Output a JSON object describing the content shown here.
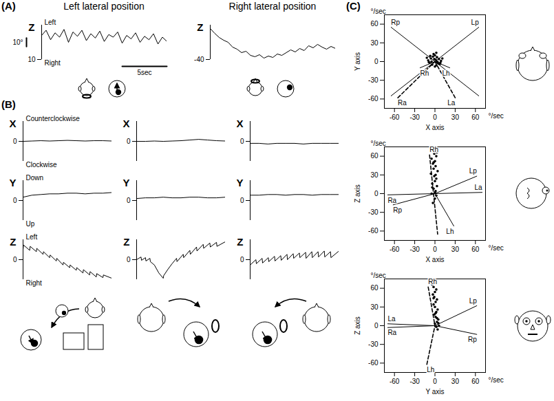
{
  "chart_data": [
    {
      "panel": "(A)",
      "type": "line",
      "title": "Left lateral position",
      "ylabel": "Z",
      "annotations": [
        "Left",
        "Right"
      ],
      "x": [
        0,
        0.5,
        1,
        1.5,
        2,
        2.5,
        3,
        3.5,
        4,
        4.5,
        5,
        5.5,
        6,
        6.5,
        7,
        7.5,
        8,
        8.5,
        9,
        9.5,
        10,
        10.5,
        11,
        11.5,
        12,
        12.5,
        13,
        13.5,
        14
      ],
      "values": [
        38,
        44,
        33,
        41,
        36,
        45,
        30,
        42,
        37,
        44,
        32,
        40,
        35,
        43,
        31,
        39,
        36,
        42,
        29,
        38,
        34,
        41,
        30,
        37,
        33,
        40,
        28,
        36,
        31
      ],
      "xlim": [
        0,
        14
      ],
      "ylim": [
        10,
        50
      ],
      "yticks": [
        10
      ],
      "tick_labels": "y",
      "scale_bar": {
        "y": 10,
        "y_label": "10°",
        "x": 5,
        "x_label": "5sec"
      }
    },
    {
      "type": "line",
      "title": "Right lateral position",
      "ylabel": "Z",
      "x": [
        0,
        0.5,
        1,
        1.5,
        2,
        2.5,
        3,
        3.5,
        4,
        4.5,
        5,
        5.5,
        6,
        6.5,
        7,
        7.5,
        8,
        8.5,
        9,
        9.5,
        10,
        10.5,
        11,
        11.5,
        12,
        12.5,
        13,
        13.5,
        14
      ],
      "values": [
        5,
        -2,
        -8,
        -12,
        -15,
        -22,
        -25,
        -30,
        -28,
        -34,
        -36,
        -33,
        -38,
        -35,
        -37,
        -32,
        -34,
        -30,
        -26,
        -29,
        -24,
        -27,
        -20,
        -23,
        -18,
        -22,
        -25,
        -21,
        -24
      ],
      "xlim": [
        0,
        14
      ],
      "ylim": [
        -40,
        10
      ],
      "yticks": [
        -40
      ],
      "tick_labels": "y"
    },
    {
      "panel": "(B)",
      "type": "line",
      "ylabel": "X",
      "annotations": [
        "Counterclockwise",
        "Clockwise"
      ],
      "x": [
        0,
        2,
        4,
        6,
        8,
        10,
        12,
        14,
        16,
        18,
        20
      ],
      "values": [
        0,
        0.5,
        1,
        0.5,
        1,
        1.5,
        1,
        0.5,
        1,
        1,
        0.5
      ],
      "xlim": [
        0,
        20
      ],
      "ylim": [
        -30,
        30
      ],
      "yticks": [
        0
      ],
      "tick_labels": "y"
    },
    {
      "type": "line",
      "ylabel": "Y",
      "annotations": [
        "Down",
        "Up"
      ],
      "x": [
        0,
        2,
        4,
        6,
        8,
        10,
        12,
        14,
        16,
        18,
        20
      ],
      "values": [
        5,
        8,
        9,
        10,
        10,
        11,
        11,
        10,
        11,
        11,
        12
      ],
      "xlim": [
        0,
        20
      ],
      "ylim": [
        -30,
        30
      ],
      "yticks": [
        0
      ],
      "tick_labels": "y"
    },
    {
      "type": "line",
      "ylabel": "Z",
      "annotations": [
        "Left",
        "Right"
      ],
      "x": [
        0,
        0.1,
        1.5,
        1.6,
        3,
        3.1,
        4.5,
        4.6,
        6,
        6.1,
        7.5,
        7.6,
        9,
        9.1,
        10.5,
        10.6,
        12,
        12.1,
        13.5,
        13.6,
        15,
        15.1,
        16.5,
        16.6,
        18,
        18.1,
        20
      ],
      "values": [
        15,
        22,
        14,
        20,
        12,
        17,
        8,
        12,
        3,
        7,
        -2,
        2,
        -8,
        -4,
        -12,
        -8,
        -16,
        -12,
        -20,
        -15,
        -23,
        -18,
        -26,
        -21,
        -27,
        -23,
        -28
      ],
      "xlim": [
        0,
        20
      ],
      "ylim": [
        -30,
        30
      ],
      "yticks": [
        0
      ],
      "tick_labels": "y"
    },
    {
      "type": "line",
      "ylabel": "X",
      "x": [
        0,
        2,
        4,
        6,
        8,
        10,
        12,
        14,
        16,
        18,
        20
      ],
      "values": [
        0,
        0,
        0.5,
        0,
        0.5,
        1,
        2,
        3,
        2,
        1,
        0.5
      ],
      "xlim": [
        0,
        20
      ],
      "ylim": [
        -30,
        30
      ],
      "yticks": [
        0
      ],
      "tick_labels": "y"
    },
    {
      "type": "line",
      "ylabel": "Y",
      "x": [
        0,
        2,
        4,
        6,
        8,
        10,
        12,
        14,
        16,
        18,
        20
      ],
      "values": [
        3,
        4,
        4,
        5,
        4,
        4,
        5,
        5,
        4,
        4,
        5
      ],
      "xlim": [
        0,
        20
      ],
      "ylim": [
        -30,
        30
      ],
      "yticks": [
        0
      ],
      "tick_labels": "y"
    },
    {
      "type": "line",
      "ylabel": "Z",
      "x": [
        0,
        1,
        1.1,
        2,
        2.1,
        3,
        3.1,
        4,
        5,
        6,
        6.1,
        7,
        8,
        9,
        9.1,
        10.5,
        10.6,
        12,
        12.1,
        13.5,
        13.6,
        15,
        15.1,
        16.5,
        16.6,
        18,
        18.1,
        20
      ],
      "values": [
        0,
        4,
        -1,
        3,
        -2,
        2,
        -3,
        -8,
        -20,
        -28,
        -24,
        -15,
        -6,
        2,
        -3,
        8,
        3,
        14,
        8,
        19,
        13,
        23,
        17,
        25,
        19,
        26,
        20,
        27
      ],
      "xlim": [
        0,
        20
      ],
      "ylim": [
        -30,
        30
      ],
      "yticks": [
        0
      ],
      "tick_labels": "y"
    },
    {
      "type": "line",
      "ylabel": "X",
      "x": [
        0,
        2,
        4,
        6,
        8,
        10,
        12,
        14,
        16,
        18,
        20
      ],
      "values": [
        -3,
        -3,
        -4,
        -3,
        -3,
        -3,
        -4,
        -3,
        -3,
        -3,
        -3
      ],
      "xlim": [
        0,
        20
      ],
      "ylim": [
        -30,
        30
      ],
      "yticks": [
        0
      ],
      "tick_labels": "y"
    },
    {
      "type": "line",
      "ylabel": "Y",
      "x": [
        0,
        2,
        4,
        6,
        8,
        10,
        12,
        14,
        16,
        18,
        20
      ],
      "values": [
        8,
        8,
        9,
        9,
        8,
        9,
        9,
        8,
        9,
        9,
        9
      ],
      "xlim": [
        0,
        20
      ],
      "ylim": [
        -30,
        30
      ],
      "yticks": [
        0
      ],
      "tick_labels": "y"
    },
    {
      "type": "line",
      "ylabel": "Z",
      "x": [
        0,
        1.3,
        1.4,
        2.7,
        2.8,
        4.1,
        4.2,
        5.5,
        5.6,
        6.9,
        7,
        8.3,
        8.4,
        9.7,
        9.8,
        11.1,
        11.2,
        12.5,
        12.6,
        13.9,
        14,
        15.3,
        15.4,
        16.7,
        16.8,
        18.1,
        18.2,
        20
      ],
      "values": [
        -8,
        0,
        -6,
        2,
        -5,
        3,
        -3,
        5,
        -2,
        6,
        -1,
        8,
        0,
        9,
        2,
        10,
        3,
        11,
        2,
        12,
        3,
        12,
        4,
        13,
        4,
        12,
        3,
        13
      ],
      "xlim": [
        0,
        20
      ],
      "ylim": [
        -30,
        30
      ],
      "yticks": [
        0
      ],
      "tick_labels": "y"
    },
    {
      "panel": "(C)",
      "type": "scatter",
      "xlabel": "X axis",
      "ylabel": "Y axis",
      "unit": "°/sec",
      "xlim": [
        -75,
        75
      ],
      "ylim": [
        -75,
        75
      ],
      "xticks": [
        -60,
        -30,
        0,
        30,
        60
      ],
      "yticks": [
        -60,
        -30,
        0,
        30,
        60
      ],
      "series": [
        {
          "type": "scatter",
          "x": [
            -10,
            -6,
            -3,
            0,
            3,
            6,
            9,
            -8,
            -4,
            2,
            5,
            -12,
            11,
            -2,
            1,
            4,
            -5,
            7,
            -7,
            0,
            3,
            -1,
            8,
            -9,
            2
          ],
          "y": [
            2,
            5,
            8,
            10,
            7,
            4,
            1,
            -2,
            -5,
            -6,
            -3,
            6,
            5,
            12,
            3,
            -1,
            0,
            -4,
            9,
            -8,
            0,
            4,
            -2,
            -1,
            14
          ]
        },
        {
          "name": "Rp",
          "type": "line",
          "line_style": "solid",
          "x": [
            -65,
            65
          ],
          "y": [
            55,
            -55
          ]
        },
        {
          "name": "Lp",
          "type": "line",
          "line_style": "solid",
          "x": [
            65,
            -65
          ],
          "y": [
            55,
            -55
          ]
        },
        {
          "name": "Ra",
          "type": "line",
          "line_style": "dashed",
          "x": [
            -55,
            0
          ],
          "y": [
            -58,
            0
          ]
        },
        {
          "name": "La",
          "type": "line",
          "line_style": "dashed",
          "x": [
            30,
            0
          ],
          "y": [
            -58,
            0
          ]
        },
        {
          "name": "Rh",
          "type": "line",
          "line_style": "solid",
          "x": [
            -22,
            0
          ],
          "y": [
            -10,
            0
          ]
        },
        {
          "name": "Lh",
          "type": "line",
          "line_style": "solid",
          "x": [
            22,
            0
          ],
          "y": [
            -10,
            0
          ]
        }
      ]
    },
    {
      "type": "scatter",
      "xlabel": "X axis",
      "ylabel": "Z axis",
      "unit": "°/sec",
      "xlim": [
        -75,
        75
      ],
      "ylim": [
        -75,
        75
      ],
      "xticks": [
        -60,
        -30,
        0,
        30,
        60
      ],
      "yticks": [
        -60,
        -30,
        0,
        30,
        60
      ],
      "series": [
        {
          "type": "scatter",
          "x": [
            -3,
            0,
            2,
            -5,
            1,
            -2,
            3,
            -4,
            0,
            2,
            -1,
            -6,
            4,
            -2,
            1,
            -3,
            0,
            -5,
            2,
            -1,
            3,
            -4,
            1,
            -2,
            0
          ],
          "y": [
            -15,
            -8,
            -3,
            0,
            4,
            8,
            12,
            16,
            20,
            24,
            28,
            32,
            36,
            40,
            44,
            48,
            52,
            56,
            60,
            64,
            66,
            10,
            30,
            50,
            2
          ]
        },
        {
          "name": "Rh",
          "type": "line",
          "line_style": "dashed",
          "x": [
            -8,
            4
          ],
          "y": [
            62,
            -65
          ]
        },
        {
          "name": "Lh",
          "type": "line",
          "line_style": "solid",
          "x": [
            28,
            0
          ],
          "y": [
            -52,
            0
          ]
        },
        {
          "name": "Lp",
          "type": "line",
          "line_style": "solid",
          "x": [
            62,
            0
          ],
          "y": [
            28,
            0
          ]
        },
        {
          "name": "La",
          "type": "line",
          "line_style": "solid",
          "x": [
            70,
            0
          ],
          "y": [
            2,
            0
          ]
        },
        {
          "name": "Ra",
          "type": "line",
          "line_style": "solid",
          "x": [
            -70,
            0
          ],
          "y": [
            -2,
            0
          ]
        },
        {
          "name": "Rp",
          "type": "line",
          "line_style": "solid",
          "x": [
            -62,
            0
          ],
          "y": [
            -18,
            0
          ]
        }
      ]
    },
    {
      "type": "scatter",
      "xlabel": "Y axis",
      "ylabel": "Z axis",
      "unit": "°/sec",
      "xlim": [
        -75,
        75
      ],
      "ylim": [
        -75,
        75
      ],
      "xticks": [
        -60,
        -30,
        0,
        30,
        60
      ],
      "yticks": [
        -60,
        -30,
        0,
        30,
        60
      ],
      "series": [
        {
          "type": "scatter",
          "x": [
            4,
            2,
            6,
            0,
            3,
            5,
            1,
            -1,
            2,
            4,
            0,
            -2,
            1,
            3,
            -1,
            -3,
            0,
            2,
            -2,
            -4,
            -1,
            5,
            1,
            -2,
            3
          ],
          "y": [
            -6,
            -2,
            0,
            3,
            6,
            10,
            14,
            18,
            22,
            26,
            30,
            34,
            38,
            42,
            46,
            50,
            54,
            58,
            62,
            66,
            68,
            4,
            20,
            44,
            12
          ]
        },
        {
          "name": "Rh",
          "type": "line",
          "line_style": "dashed",
          "x": [
            -10,
            0
          ],
          "y": [
            62,
            0
          ]
        },
        {
          "name": "Lh",
          "type": "line",
          "line_style": "dashed",
          "x": [
            -12,
            0
          ],
          "y": [
            -62,
            0
          ]
        },
        {
          "name": "Lp",
          "type": "line",
          "line_style": "solid",
          "x": [
            62,
            0
          ],
          "y": [
            32,
            0
          ]
        },
        {
          "name": "Rp",
          "type": "line",
          "line_style": "solid",
          "x": [
            62,
            0
          ],
          "y": [
            -14,
            0
          ]
        },
        {
          "name": "La",
          "type": "line",
          "line_style": "solid",
          "x": [
            -70,
            0
          ],
          "y": [
            3,
            0
          ]
        },
        {
          "name": "Ra",
          "type": "line",
          "line_style": "solid",
          "x": [
            -70,
            0
          ],
          "y": [
            -3,
            0
          ]
        }
      ]
    }
  ]
}
